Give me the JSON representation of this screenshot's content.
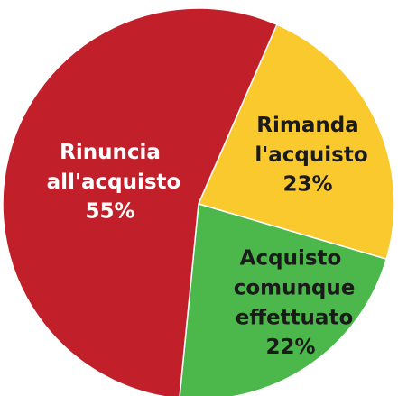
{
  "chart_data": {
    "type": "pie",
    "categories": [
      "Rimanda l'acquisto",
      "Acquisto comunque effettuato",
      "Rinuncia all'acquisto"
    ],
    "values": [
      23,
      22,
      55
    ],
    "value_labels": [
      "23%",
      "22%",
      "55%"
    ],
    "colors": [
      "#fac92e",
      "#4cb84b",
      "#c1202b"
    ],
    "label_colors": [
      "#1a1a1a",
      "#1a1a1a",
      "#ffffff"
    ]
  }
}
